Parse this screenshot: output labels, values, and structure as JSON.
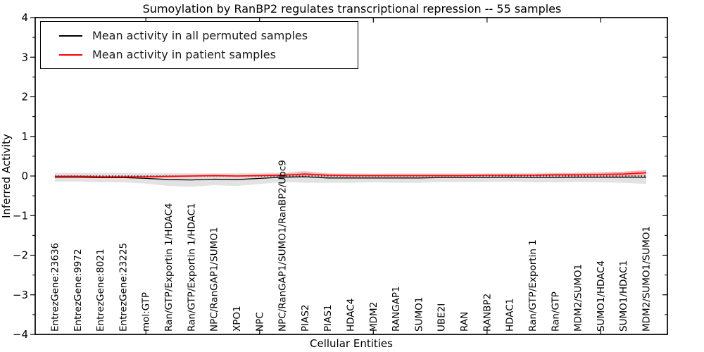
{
  "chart_data": {
    "type": "line",
    "title": "Sumoylation by RanBP2 regulates transcriptional repression -- 55 samples",
    "xlabel": "Cellular Entities",
    "ylabel": "Inferred Activity",
    "ylim": [
      -4,
      4
    ],
    "yticks": [
      -4,
      -3,
      -2,
      -1,
      0,
      1,
      2,
      3,
      4
    ],
    "y_minor_tick_step": 0.5,
    "x_major_tick_category_indices": [
      4,
      9,
      14,
      19,
      24
    ],
    "grid": false,
    "legend_position": "upper-left",
    "zero_line": {
      "value": 0,
      "style": "dotted",
      "color": "#000000"
    },
    "categories": [
      "EntrezGene:23636",
      "EntrezGene:9972",
      "EntrezGene:8021",
      "EntrezGene:23225",
      "mol:GTP",
      "Ran/GTP/Exportin 1/HDAC4",
      "Ran/GTP/Exportin 1/HDAC1",
      "NPC/RanGAP1/SUMO1",
      "XPO1",
      "NPC",
      "NPC/RanGAP1/SUMO1/RanBP2/Ubc9",
      "PIAS2",
      "PIAS1",
      "HDAC4",
      "MDM2",
      "RANGAP1",
      "SUMO1",
      "UBE2I",
      "RAN",
      "RANBP2",
      "HDAC1",
      "Ran/GTP/Exportin 1",
      "Ran/GTP",
      "MDM2/SUMO1",
      "SUMO1/HDAC4",
      "SUMO1/HDAC1",
      "MDM2/SUMO1/SUMO1"
    ],
    "series": [
      {
        "name": "Mean activity in all permuted samples",
        "color": "#000000",
        "values": [
          -0.03,
          -0.03,
          -0.04,
          -0.04,
          -0.06,
          -0.09,
          -0.1,
          -0.08,
          -0.09,
          -0.06,
          -0.03,
          -0.02,
          -0.05,
          -0.05,
          -0.05,
          -0.05,
          -0.05,
          -0.04,
          -0.04,
          -0.04,
          -0.03,
          -0.04,
          -0.04,
          -0.03,
          -0.03,
          -0.03,
          -0.03
        ],
        "band_half_widths": [
          0.11,
          0.11,
          0.12,
          0.12,
          0.13,
          0.16,
          0.17,
          0.15,
          0.16,
          0.14,
          0.12,
          0.15,
          0.12,
          0.12,
          0.11,
          0.12,
          0.12,
          0.11,
          0.11,
          0.11,
          0.11,
          0.12,
          0.12,
          0.12,
          0.13,
          0.14,
          0.17
        ],
        "band_color": "#bfbfbf"
      },
      {
        "name": "Mean activity in patient samples",
        "color": "#ff0000",
        "values": [
          -0.01,
          -0.01,
          -0.02,
          -0.02,
          -0.02,
          -0.01,
          0.0,
          0.01,
          0.0,
          0.01,
          0.02,
          0.05,
          0.02,
          0.01,
          0.01,
          0.01,
          0.01,
          0.01,
          0.01,
          0.02,
          0.02,
          0.02,
          0.03,
          0.03,
          0.04,
          0.05,
          0.08
        ],
        "band_half_widths": [
          0.03,
          0.03,
          0.03,
          0.03,
          0.03,
          0.03,
          0.03,
          0.03,
          0.03,
          0.03,
          0.04,
          0.05,
          0.04,
          0.03,
          0.03,
          0.03,
          0.03,
          0.03,
          0.03,
          0.03,
          0.03,
          0.03,
          0.04,
          0.04,
          0.05,
          0.06,
          0.07
        ],
        "band_color": "#ff8080"
      }
    ]
  }
}
